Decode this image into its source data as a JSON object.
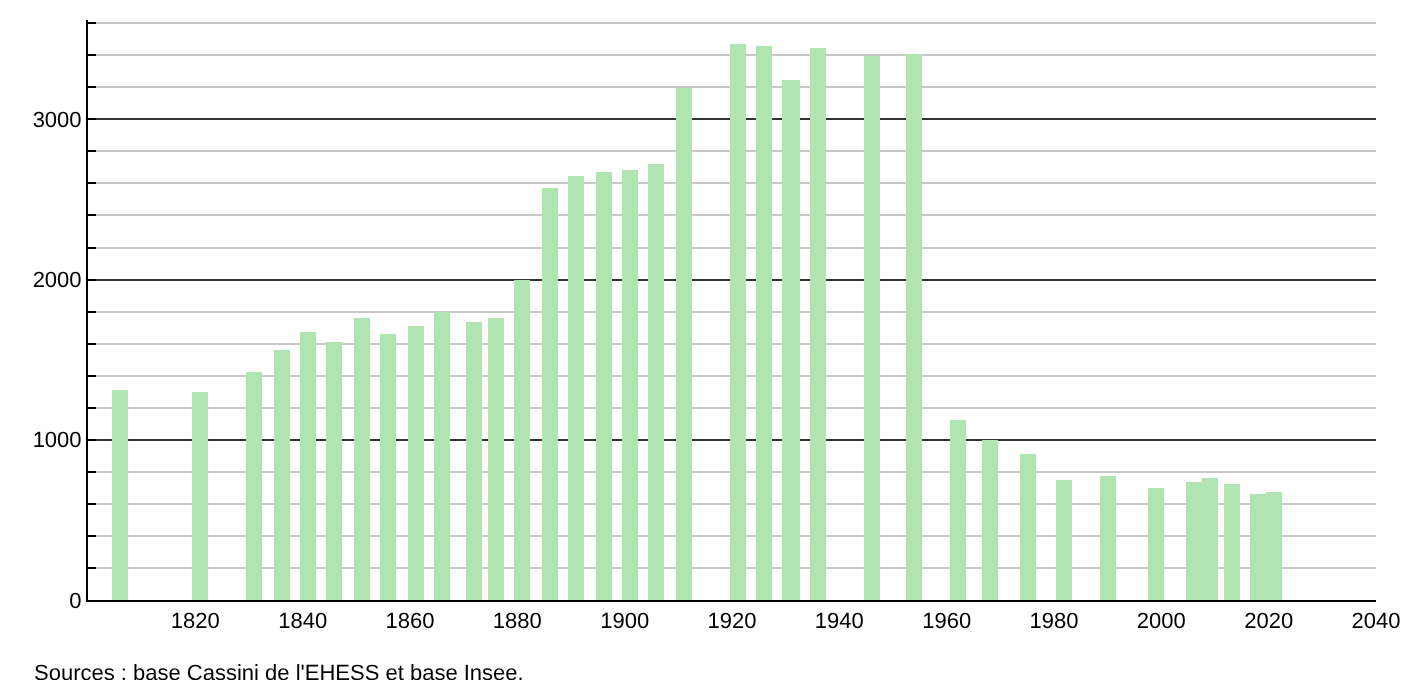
{
  "chart_data": {
    "type": "bar",
    "x": [
      1806,
      1821,
      1831,
      1836,
      1841,
      1846,
      1851,
      1856,
      1861,
      1866,
      1872,
      1876,
      1881,
      1886,
      1891,
      1896,
      1901,
      1906,
      1911,
      1921,
      1926,
      1931,
      1936,
      1946,
      1954,
      1962,
      1968,
      1975,
      1982,
      1990,
      1999,
      2006,
      2009,
      2013,
      2018,
      2021
    ],
    "values": [
      1310,
      1300,
      1420,
      1560,
      1670,
      1610,
      1760,
      1660,
      1710,
      1800,
      1740,
      1760,
      2000,
      2570,
      2650,
      2670,
      2690,
      2720,
      3200,
      3470,
      3460,
      3250,
      3450,
      3400,
      3410,
      1120,
      1000,
      910,
      750,
      780,
      700,
      740,
      760,
      720,
      660,
      670
    ],
    "color": "#b0e4b0",
    "xlim": [
      1800,
      2040
    ],
    "xticks": [
      1820,
      1840,
      1860,
      1880,
      1900,
      1920,
      1940,
      1960,
      1980,
      2000,
      2020,
      2040
    ],
    "ylim": [
      0,
      3620
    ],
    "yticks": [
      0,
      {
        "value": 200,
        "label": null
      },
      {
        "value": 400,
        "label": null
      },
      {
        "value": 600,
        "label": null
      },
      {
        "value": 800,
        "label": null
      },
      1000,
      {
        "value": 1200,
        "label": null
      },
      {
        "value": 1400,
        "label": null
      },
      {
        "value": 1600,
        "label": null
      },
      {
        "value": 1800,
        "label": null
      },
      2000,
      {
        "value": 2200,
        "label": null
      },
      {
        "value": 2400,
        "label": null
      },
      {
        "value": 2600,
        "label": null
      },
      {
        "value": 2800,
        "label": null
      },
      3000,
      {
        "value": 3200,
        "label": null
      },
      {
        "value": 3400,
        "label": null
      },
      {
        "value": 3600,
        "label": null
      }
    ],
    "grid": "y",
    "annotations": [
      "Sources : base Cassini de l'EHESS et base Insee."
    ]
  }
}
